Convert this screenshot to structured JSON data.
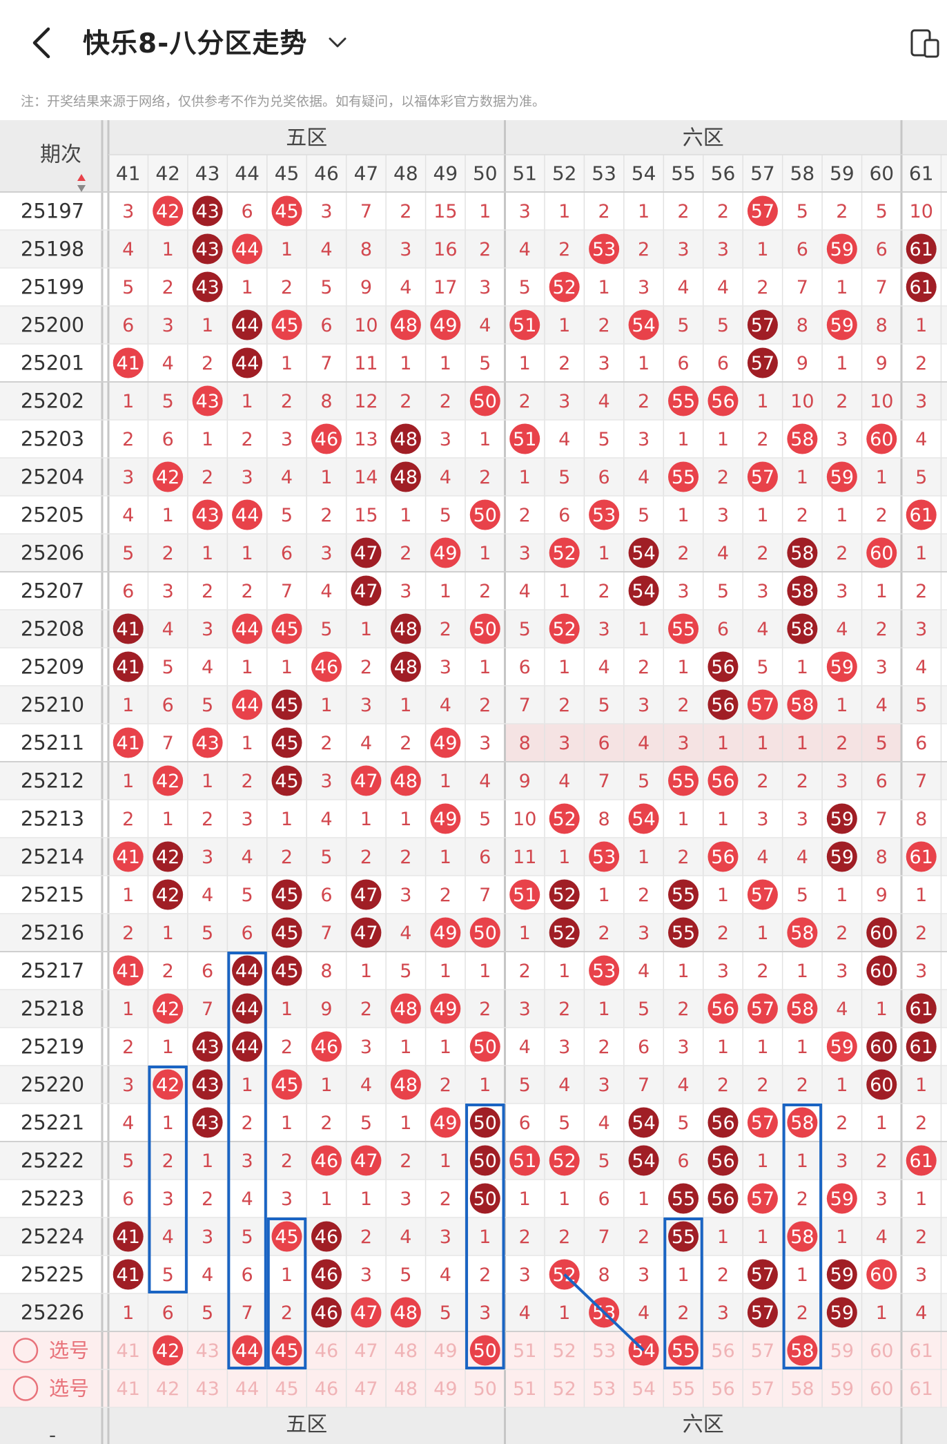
{
  "header": {
    "title": "快乐8-八分区走势",
    "back_icon": "back-arrow-icon",
    "dropdown_icon": "chevron-down-icon",
    "device_icon": "device-toggle-icon"
  },
  "notice": "注：开奖结果来源于网络，仅供参考不作为兑奖依据。如有疑问，以福体彩官方数据为准。",
  "table": {
    "period_header": "期次",
    "sort_icon": "sort-arrows-icon",
    "zones": [
      {
        "label": "五区",
        "first": 41,
        "last": 50
      },
      {
        "label": "六区",
        "first": 51,
        "last": 60
      }
    ],
    "columns": [
      "41",
      "42",
      "43",
      "44",
      "45",
      "46",
      "47",
      "48",
      "49",
      "50",
      "51",
      "52",
      "53",
      "54",
      "55",
      "56",
      "57",
      "58",
      "59",
      "60",
      "61"
    ],
    "periods": [
      "25197",
      "25198",
      "25199",
      "25200",
      "25201",
      "25202",
      "25203",
      "25204",
      "25205",
      "25206",
      "25207",
      "25208",
      "25209",
      "25210",
      "25211",
      "25212",
      "25213",
      "25214",
      "25215",
      "25216",
      "25217",
      "25218",
      "25219",
      "25220",
      "25221",
      "25222",
      "25223",
      "25224",
      "25225",
      "25226"
    ],
    "cells": [
      [
        "3",
        "42",
        "43",
        "6",
        "45",
        "3",
        "7",
        "2",
        "15",
        "1",
        "3",
        "1",
        "2",
        "1",
        "2",
        "2",
        "57",
        "5",
        "2",
        "5",
        "10"
      ],
      [
        "4",
        "1",
        "43",
        "44",
        "1",
        "4",
        "8",
        "3",
        "16",
        "2",
        "4",
        "2",
        "53",
        "2",
        "3",
        "3",
        "1",
        "6",
        "59",
        "6",
        "61"
      ],
      [
        "5",
        "2",
        "43",
        "1",
        "2",
        "5",
        "9",
        "4",
        "17",
        "3",
        "5",
        "52",
        "1",
        "3",
        "4",
        "4",
        "2",
        "7",
        "1",
        "7",
        "61"
      ],
      [
        "6",
        "3",
        "1",
        "44",
        "45",
        "6",
        "10",
        "48",
        "49",
        "4",
        "51",
        "1",
        "2",
        "54",
        "5",
        "5",
        "57",
        "8",
        "59",
        "8",
        "1"
      ],
      [
        "41",
        "4",
        "2",
        "44",
        "1",
        "7",
        "11",
        "1",
        "1",
        "5",
        "1",
        "2",
        "3",
        "1",
        "6",
        "6",
        "57",
        "9",
        "1",
        "9",
        "2"
      ],
      [
        "1",
        "5",
        "43",
        "1",
        "2",
        "8",
        "12",
        "2",
        "2",
        "50",
        "2",
        "3",
        "4",
        "2",
        "55",
        "56",
        "1",
        "10",
        "2",
        "10",
        "3"
      ],
      [
        "2",
        "6",
        "1",
        "2",
        "3",
        "46",
        "13",
        "48",
        "3",
        "1",
        "51",
        "4",
        "5",
        "3",
        "1",
        "1",
        "2",
        "58",
        "3",
        "60",
        "4"
      ],
      [
        "3",
        "42",
        "2",
        "3",
        "4",
        "1",
        "14",
        "48",
        "4",
        "2",
        "1",
        "5",
        "6",
        "4",
        "55",
        "2",
        "57",
        "1",
        "59",
        "1",
        "5"
      ],
      [
        "4",
        "1",
        "43",
        "44",
        "5",
        "2",
        "15",
        "1",
        "5",
        "50",
        "2",
        "6",
        "53",
        "5",
        "1",
        "3",
        "1",
        "2",
        "1",
        "2",
        "61"
      ],
      [
        "5",
        "2",
        "1",
        "1",
        "6",
        "3",
        "47",
        "2",
        "49",
        "1",
        "3",
        "52",
        "1",
        "54",
        "2",
        "4",
        "2",
        "58",
        "2",
        "60",
        "1"
      ],
      [
        "6",
        "3",
        "2",
        "2",
        "7",
        "4",
        "47",
        "3",
        "1",
        "2",
        "4",
        "1",
        "2",
        "54",
        "3",
        "5",
        "3",
        "58",
        "3",
        "1",
        "2"
      ],
      [
        "41",
        "4",
        "3",
        "44",
        "45",
        "5",
        "1",
        "48",
        "2",
        "50",
        "5",
        "52",
        "3",
        "1",
        "55",
        "6",
        "4",
        "58",
        "4",
        "2",
        "3"
      ],
      [
        "41",
        "5",
        "4",
        "1",
        "1",
        "46",
        "2",
        "48",
        "3",
        "1",
        "6",
        "1",
        "4",
        "2",
        "1",
        "56",
        "5",
        "1",
        "59",
        "3",
        "4"
      ],
      [
        "1",
        "6",
        "5",
        "44",
        "45",
        "1",
        "3",
        "1",
        "4",
        "2",
        "7",
        "2",
        "5",
        "3",
        "2",
        "56",
        "57",
        "58",
        "1",
        "4",
        "5"
      ],
      [
        "41",
        "7",
        "43",
        "1",
        "45",
        "2",
        "4",
        "2",
        "49",
        "3",
        "8",
        "3",
        "6",
        "4",
        "3",
        "1",
        "1",
        "1",
        "2",
        "5",
        "6"
      ],
      [
        "1",
        "42",
        "1",
        "2",
        "45",
        "3",
        "47",
        "48",
        "1",
        "4",
        "9",
        "4",
        "7",
        "5",
        "55",
        "56",
        "2",
        "2",
        "3",
        "6",
        "7"
      ],
      [
        "2",
        "1",
        "2",
        "3",
        "1",
        "4",
        "1",
        "1",
        "49",
        "5",
        "10",
        "52",
        "8",
        "54",
        "1",
        "1",
        "3",
        "3",
        "59",
        "7",
        "8"
      ],
      [
        "41",
        "42",
        "3",
        "4",
        "2",
        "5",
        "2",
        "2",
        "1",
        "6",
        "11",
        "1",
        "53",
        "1",
        "2",
        "56",
        "4",
        "4",
        "59",
        "8",
        "61"
      ],
      [
        "1",
        "42",
        "4",
        "5",
        "45",
        "6",
        "47",
        "3",
        "2",
        "7",
        "51",
        "52",
        "1",
        "2",
        "55",
        "1",
        "57",
        "5",
        "1",
        "9",
        "1"
      ],
      [
        "2",
        "1",
        "5",
        "6",
        "45",
        "7",
        "47",
        "4",
        "49",
        "50",
        "1",
        "52",
        "2",
        "3",
        "55",
        "2",
        "1",
        "58",
        "2",
        "60",
        "2"
      ],
      [
        "41",
        "2",
        "6",
        "44",
        "45",
        "8",
        "1",
        "5",
        "1",
        "1",
        "2",
        "1",
        "53",
        "4",
        "1",
        "3",
        "2",
        "1",
        "3",
        "60",
        "3"
      ],
      [
        "1",
        "42",
        "7",
        "44",
        "1",
        "9",
        "2",
        "48",
        "49",
        "2",
        "3",
        "2",
        "1",
        "5",
        "2",
        "56",
        "57",
        "58",
        "4",
        "1",
        "61"
      ],
      [
        "2",
        "1",
        "43",
        "44",
        "2",
        "46",
        "3",
        "1",
        "1",
        "50",
        "4",
        "3",
        "2",
        "6",
        "3",
        "1",
        "1",
        "1",
        "59",
        "60",
        "61"
      ],
      [
        "3",
        "42",
        "43",
        "1",
        "45",
        "1",
        "4",
        "48",
        "2",
        "1",
        "5",
        "4",
        "3",
        "7",
        "4",
        "2",
        "2",
        "2",
        "1",
        "60",
        "1"
      ],
      [
        "4",
        "1",
        "43",
        "2",
        "1",
        "2",
        "5",
        "1",
        "49",
        "50",
        "6",
        "5",
        "4",
        "54",
        "5",
        "56",
        "57",
        "58",
        "2",
        "1",
        "2"
      ],
      [
        "5",
        "2",
        "1",
        "3",
        "2",
        "46",
        "47",
        "2",
        "1",
        "50",
        "51",
        "52",
        "5",
        "54",
        "6",
        "56",
        "1",
        "1",
        "3",
        "2",
        "61"
      ],
      [
        "6",
        "3",
        "2",
        "4",
        "3",
        "1",
        "1",
        "3",
        "2",
        "50",
        "1",
        "1",
        "6",
        "1",
        "55",
        "56",
        "57",
        "2",
        "59",
        "3",
        "1"
      ],
      [
        "41",
        "4",
        "3",
        "5",
        "45",
        "46",
        "2",
        "4",
        "3",
        "1",
        "2",
        "2",
        "7",
        "2",
        "55",
        "1",
        "1",
        "58",
        "1",
        "4",
        "2"
      ],
      [
        "41",
        "5",
        "4",
        "6",
        "1",
        "46",
        "3",
        "5",
        "4",
        "2",
        "3",
        "52",
        "8",
        "3",
        "1",
        "2",
        "57",
        "1",
        "59",
        "60",
        "3"
      ],
      [
        "1",
        "6",
        "5",
        "7",
        "2",
        "46",
        "47",
        "48",
        "5",
        "3",
        "4",
        "1",
        "53",
        "4",
        "2",
        "3",
        "57",
        "2",
        "59",
        "1",
        "4"
      ]
    ],
    "select_rows": [
      {
        "label": "选号",
        "picked": [
          "42",
          "44",
          "45",
          "50",
          "54",
          "55",
          "58"
        ]
      },
      {
        "label": "选号",
        "picked": []
      }
    ],
    "footer_zones": [
      "五区",
      "六区"
    ]
  },
  "colors": {
    "ball_red": "#e8424a",
    "ball_dark": "#a01e25",
    "miss_text": "#d2474e",
    "frame_blue": "#1a64c3"
  }
}
